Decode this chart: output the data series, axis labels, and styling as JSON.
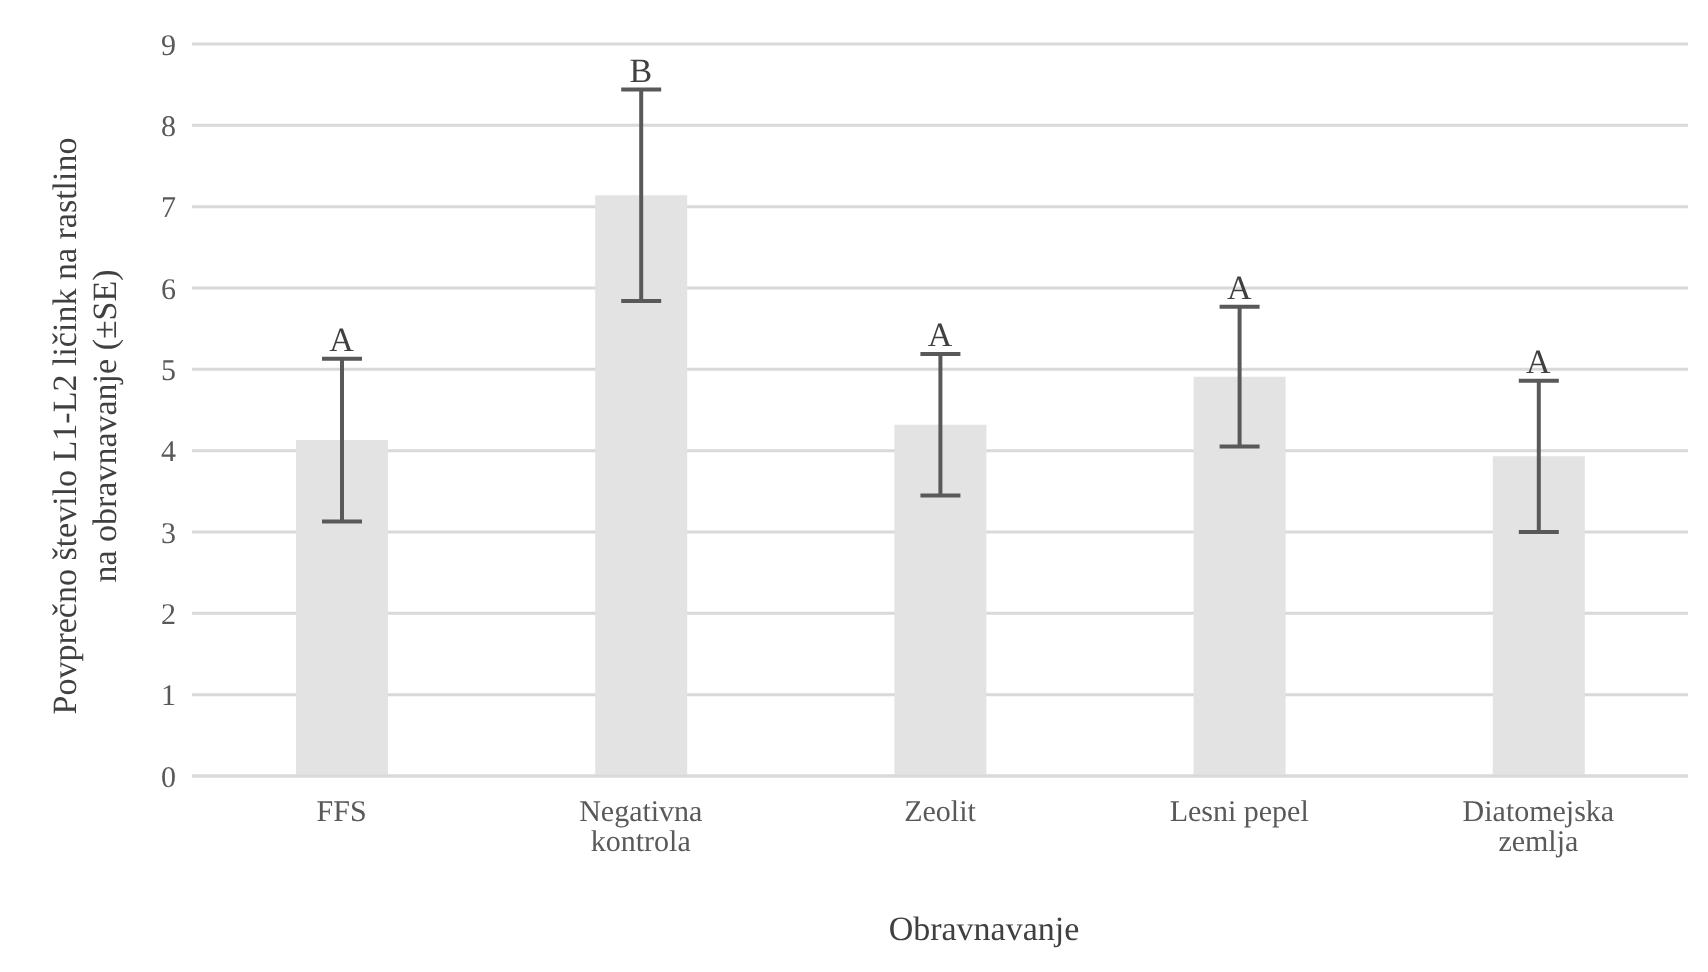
{
  "chart_data": {
    "type": "bar",
    "xlabel": "Obravnavanje",
    "ylabel": "Povprečno število L1-L2 ličink na rastlino na obravnavanje (±SE)",
    "categories": [
      "FFS",
      "Negativna kontrola",
      "Zeolit",
      "Lesni pepel",
      "Diatomejska zemlja"
    ],
    "values": [
      4.13,
      7.14,
      4.32,
      4.91,
      3.93
    ],
    "errors": [
      1.0,
      1.3,
      0.87,
      0.86,
      0.93
    ],
    "color": "#e3e3e3",
    "ylim": [
      0,
      9
    ],
    "yticks": [
      0,
      1,
      2,
      3,
      4,
      5,
      6,
      7,
      8,
      9
    ],
    "grid": "y",
    "annotations": [
      {
        "text": "A",
        "x": "FFS",
        "y": 5.13
      },
      {
        "text": "B",
        "x": "Negativna kontrola",
        "y": 8.44
      },
      {
        "text": "A",
        "x": "Zeolit",
        "y": 5.19
      },
      {
        "text": "A",
        "x": "Lesni pepel",
        "y": 5.77
      },
      {
        "text": "A",
        "x": "Diatomejska zemlja",
        "y": 4.86
      }
    ]
  }
}
